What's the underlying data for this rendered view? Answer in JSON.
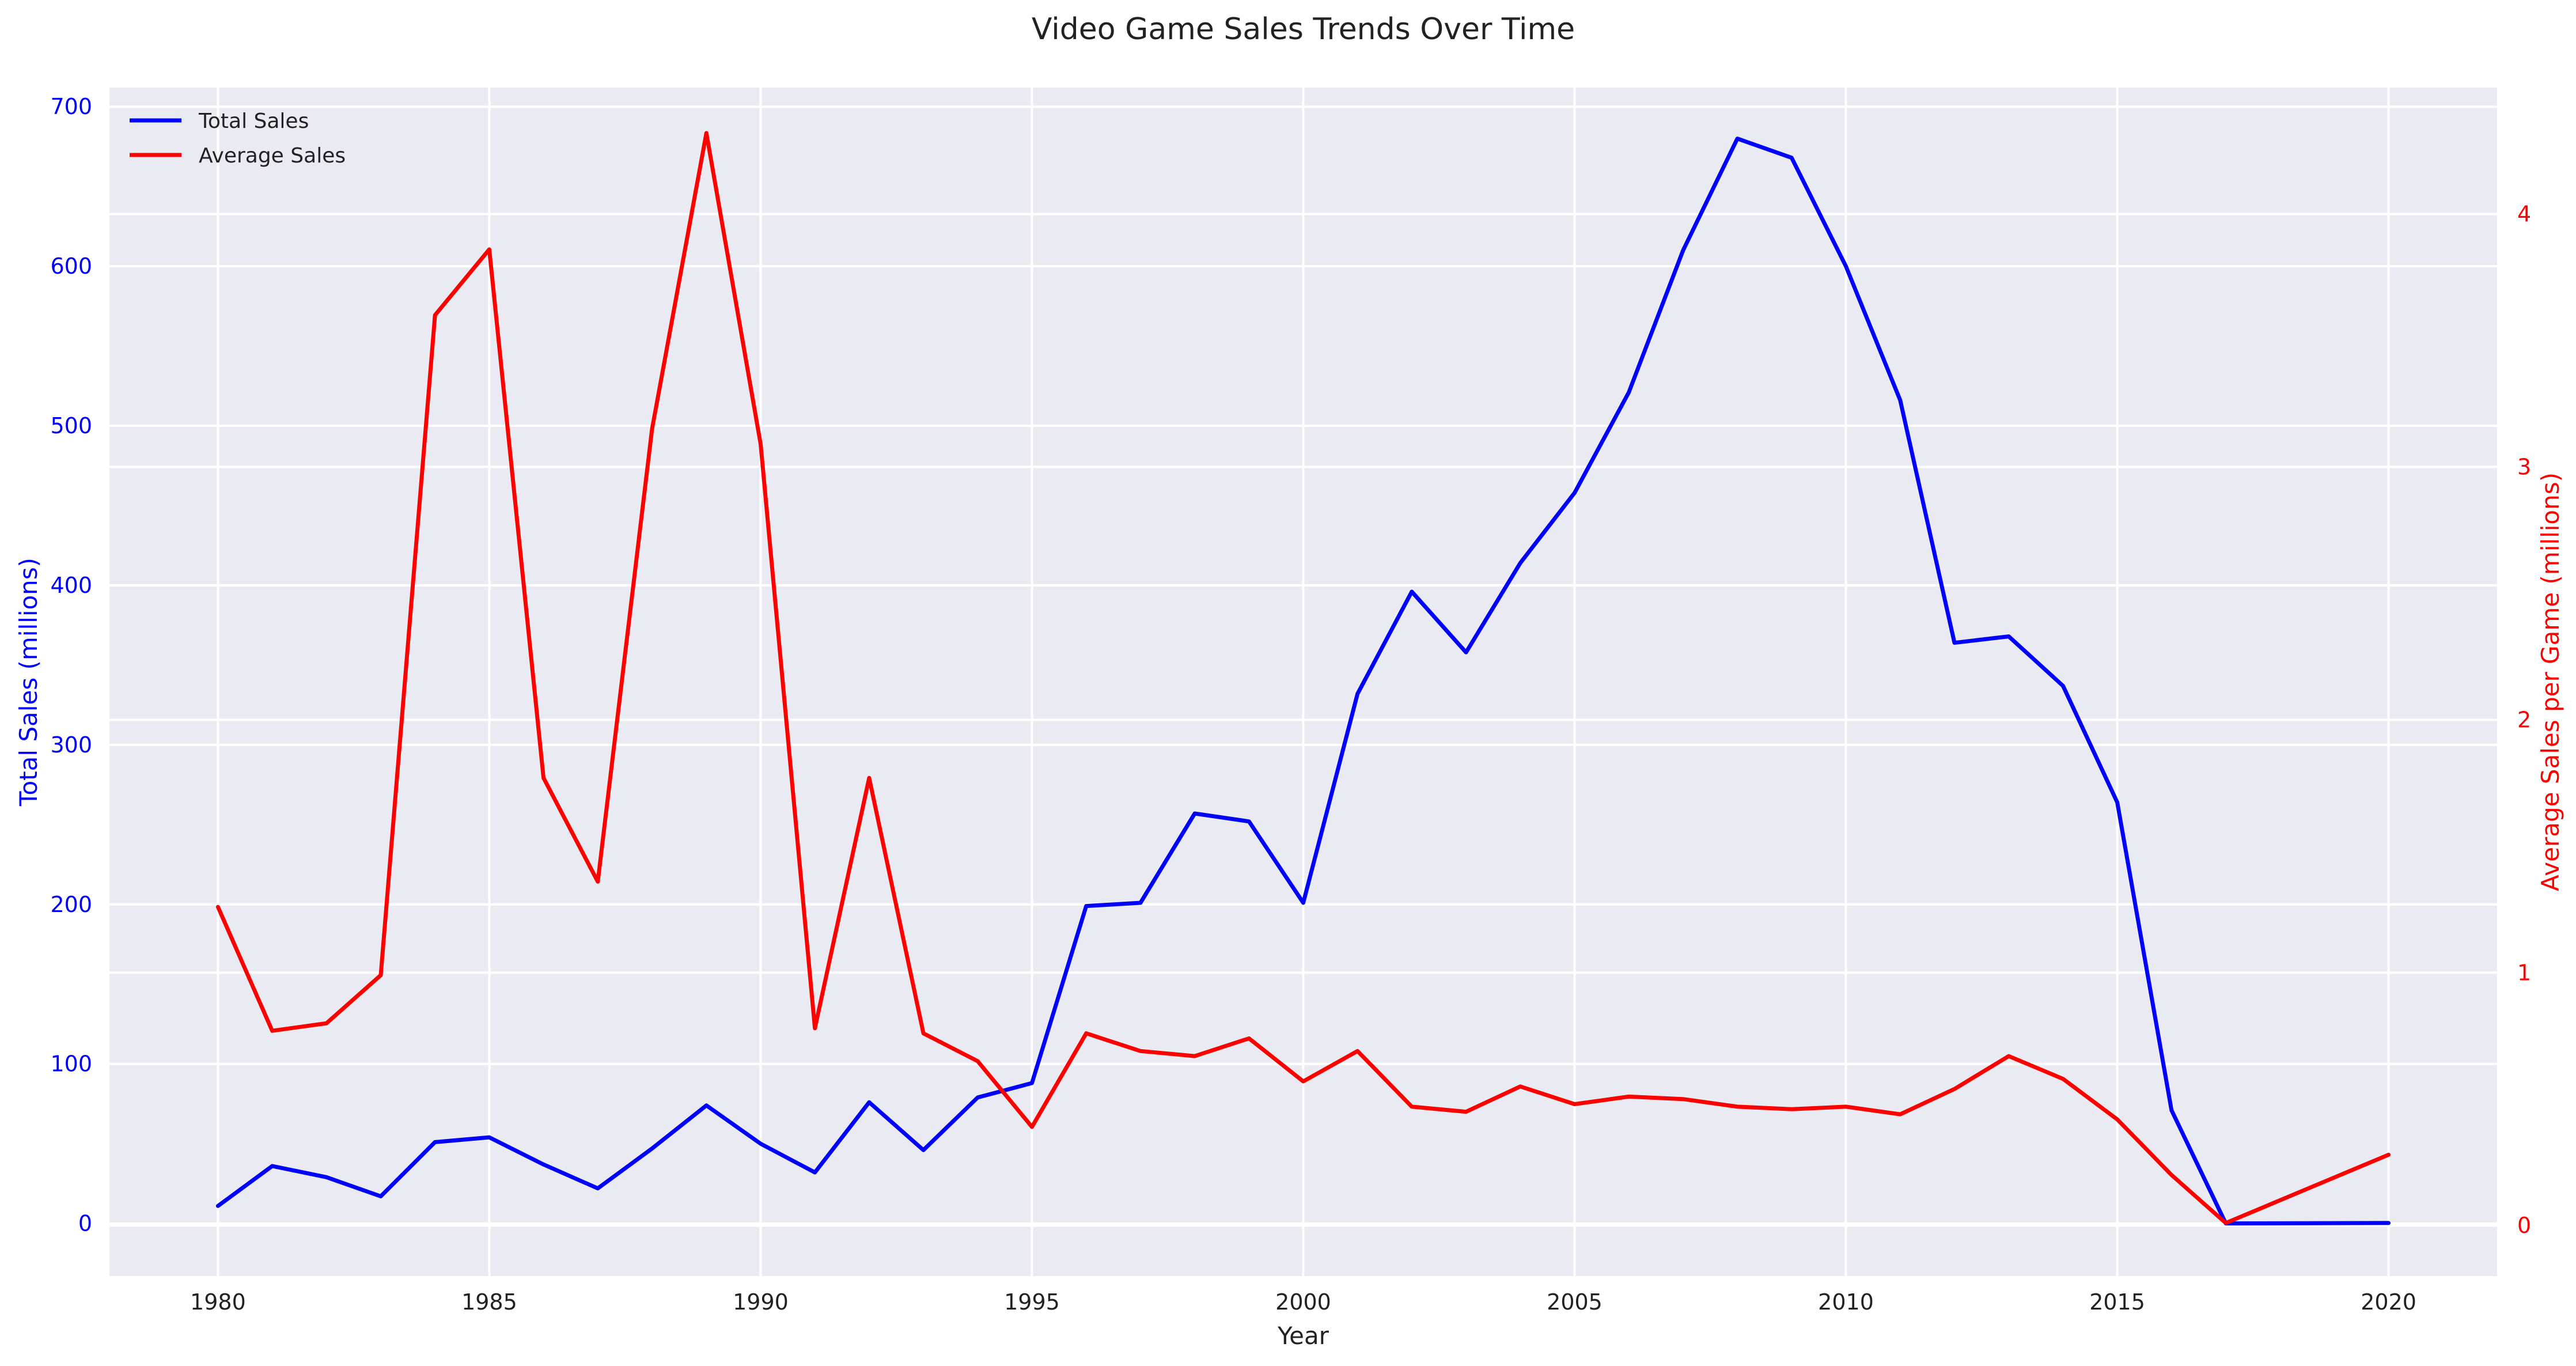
{
  "chart_data": {
    "type": "line",
    "title": "Video Game Sales Trends Over Time",
    "xlabel": "Year",
    "ylabel_left": "Total Sales (millions)",
    "ylabel_right": "Average Sales per Game (millions)",
    "xlim": [
      1978,
      2022
    ],
    "ylim_left": [
      -33,
      712
    ],
    "ylim_right": [
      -0.2,
      4.5
    ],
    "x_ticks": [
      1980,
      1985,
      1990,
      1995,
      2000,
      2005,
      2010,
      2015,
      2020
    ],
    "y_ticks_left": [
      0,
      100,
      200,
      300,
      400,
      500,
      600,
      700
    ],
    "y_ticks_right": [
      0,
      1,
      2,
      3,
      4
    ],
    "grid": true,
    "legend_position": "top-left",
    "colors": {
      "total": "#0000ff",
      "average": "#ff0000",
      "background": "#eaeaf2",
      "grid": "#ffffff"
    },
    "x": [
      1980,
      1981,
      1982,
      1983,
      1984,
      1985,
      1986,
      1987,
      1988,
      1989,
      1990,
      1991,
      1992,
      1993,
      1994,
      1995,
      1996,
      1997,
      1998,
      1999,
      2000,
      2001,
      2002,
      2003,
      2004,
      2005,
      2006,
      2007,
      2008,
      2009,
      2010,
      2011,
      2012,
      2013,
      2014,
      2015,
      2016,
      2017,
      2020
    ],
    "series": [
      {
        "name": "Total Sales",
        "axis": "left",
        "values": [
          11,
          36,
          29,
          17,
          51,
          54,
          37,
          22,
          47,
          74,
          50,
          32,
          76,
          46,
          79,
          88,
          199,
          201,
          257,
          252,
          201,
          332,
          396,
          358,
          414,
          458,
          521,
          610,
          680,
          668,
          600,
          516,
          364,
          368,
          337,
          264,
          71,
          0.05,
          0.3
        ]
      },
      {
        "name": "Average Sales",
        "axis": "right",
        "values": [
          1.26,
          0.77,
          0.8,
          0.99,
          3.6,
          3.86,
          1.77,
          1.36,
          3.15,
          4.32,
          3.09,
          0.78,
          1.77,
          0.76,
          0.65,
          0.39,
          0.76,
          0.69,
          0.67,
          0.74,
          0.57,
          0.69,
          0.47,
          0.45,
          0.55,
          0.48,
          0.51,
          0.5,
          0.47,
          0.46,
          0.47,
          0.44,
          0.54,
          0.67,
          0.58,
          0.42,
          0.2,
          0.01,
          0.28
        ]
      }
    ]
  }
}
